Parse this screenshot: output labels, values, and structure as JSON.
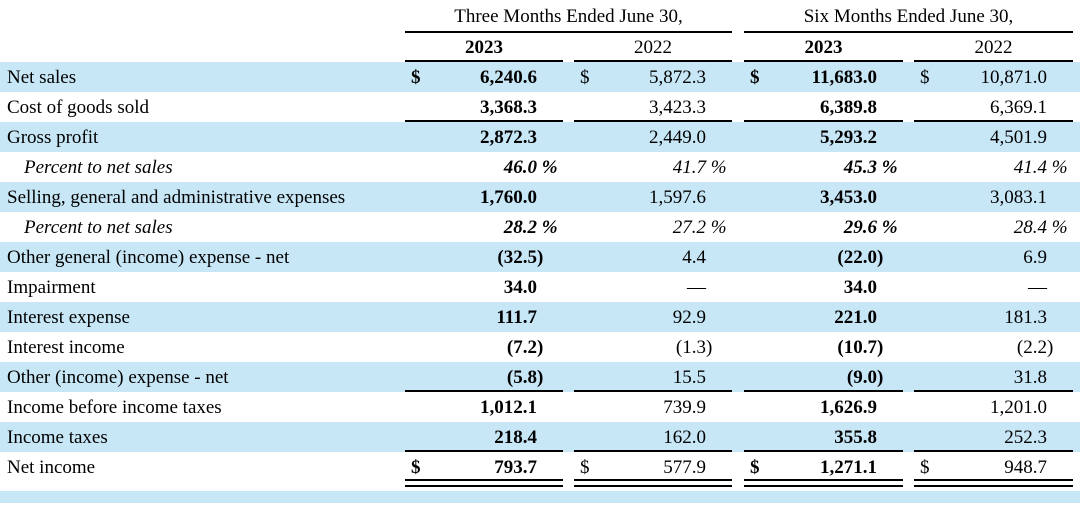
{
  "colors": {
    "stripe": "#c7e6f6",
    "text": "#000000",
    "rule": "#000000",
    "background": "#ffffff"
  },
  "table": {
    "col_groups": [
      {
        "label": "Three Months Ended June 30,"
      },
      {
        "label": "Six Months Ended June 30,"
      }
    ],
    "year_headers": [
      "2023",
      "2022",
      "2023",
      "2022"
    ],
    "rows": [
      {
        "label": "Net sales",
        "percent": false,
        "dollar": true,
        "shaded": true,
        "border_bottom": "none",
        "values": [
          "6,240.6",
          "5,872.3",
          "11,683.0",
          "10,871.0"
        ]
      },
      {
        "label": "Cost of goods sold",
        "percent": false,
        "dollar": false,
        "shaded": false,
        "border_bottom": "single",
        "values": [
          "3,368.3",
          "3,423.3",
          "6,389.8",
          "6,369.1"
        ]
      },
      {
        "label": "Gross profit",
        "percent": false,
        "dollar": false,
        "shaded": true,
        "border_bottom": "none",
        "values": [
          "2,872.3",
          "2,449.0",
          "5,293.2",
          "4,501.9"
        ]
      },
      {
        "label": "Percent to net sales",
        "percent": true,
        "dollar": false,
        "shaded": false,
        "border_bottom": "none",
        "values": [
          "46.0 %",
          "41.7 %",
          "45.3 %",
          "41.4 %"
        ]
      },
      {
        "label": "Selling, general and administrative expenses",
        "percent": false,
        "dollar": false,
        "shaded": true,
        "border_bottom": "none",
        "values": [
          "1,760.0",
          "1,597.6",
          "3,453.0",
          "3,083.1"
        ]
      },
      {
        "label": "Percent to net sales",
        "percent": true,
        "dollar": false,
        "shaded": false,
        "border_bottom": "none",
        "values": [
          "28.2 %",
          "27.2 %",
          "29.6 %",
          "28.4 %"
        ]
      },
      {
        "label": "Other general (income) expense - net",
        "percent": false,
        "dollar": false,
        "shaded": true,
        "border_bottom": "none",
        "values": [
          "(32.5)",
          "4.4",
          "(22.0)",
          "6.9"
        ]
      },
      {
        "label": "Impairment",
        "percent": false,
        "dollar": false,
        "shaded": false,
        "border_bottom": "none",
        "values": [
          "34.0",
          "—",
          "34.0",
          "—"
        ]
      },
      {
        "label": "Interest expense",
        "percent": false,
        "dollar": false,
        "shaded": true,
        "border_bottom": "none",
        "values": [
          "111.7",
          "92.9",
          "221.0",
          "181.3"
        ]
      },
      {
        "label": "Interest income",
        "percent": false,
        "dollar": false,
        "shaded": false,
        "border_bottom": "none",
        "values": [
          "(7.2)",
          "(1.3)",
          "(10.7)",
          "(2.2)"
        ]
      },
      {
        "label": "Other (income) expense - net",
        "percent": false,
        "dollar": false,
        "shaded": true,
        "border_bottom": "single",
        "values": [
          "(5.8)",
          "15.5",
          "(9.0)",
          "31.8"
        ]
      },
      {
        "label": "Income before income taxes",
        "percent": false,
        "dollar": false,
        "shaded": false,
        "border_bottom": "none",
        "values": [
          "1,012.1",
          "739.9",
          "1,626.9",
          "1,201.0"
        ]
      },
      {
        "label": "Income taxes",
        "percent": false,
        "dollar": false,
        "shaded": true,
        "border_bottom": "single",
        "values": [
          "218.4",
          "162.0",
          "355.8",
          "252.3"
        ]
      },
      {
        "label": "Net income",
        "percent": false,
        "dollar": true,
        "shaded": false,
        "border_bottom": "double",
        "values": [
          "793.7",
          "577.9",
          "1,271.1",
          "948.7"
        ]
      }
    ],
    "currency_symbol": "$"
  }
}
